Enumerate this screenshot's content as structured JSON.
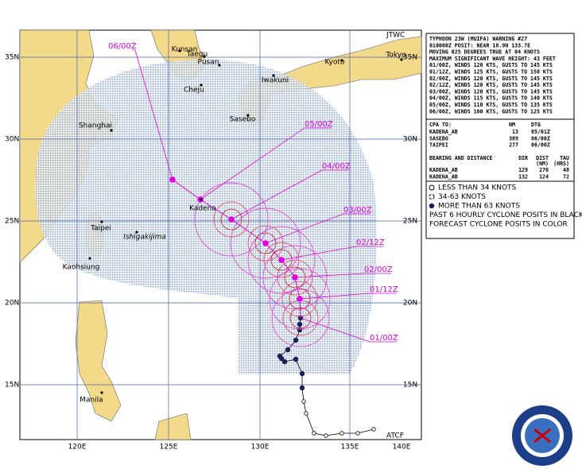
{
  "map": {
    "corner_label": "JTWC",
    "footer_label": "ATCF",
    "lat_labels": [
      "35N",
      "30N",
      "25N",
      "20N",
      "15N"
    ],
    "lon_labels": [
      "120E",
      "125E",
      "130E",
      "135E",
      "140E"
    ],
    "places": [
      "Kunsan",
      "Taegu",
      "Pusan",
      "Cheju",
      "Sasebo",
      "Iwakuni",
      "Kyoto",
      "Tokyo",
      "Shanghai",
      "Kadena",
      "Taipei",
      "Ishigakijima",
      "Kaohsiung",
      "Manila"
    ],
    "forecast_labels": [
      "01/00Z",
      "01/12Z",
      "02/00Z",
      "02/12Z",
      "03/00Z",
      "04/00Z",
      "05/00Z",
      "06/00Z"
    ]
  },
  "warning": {
    "lines": [
      "TYPHOON 23W (MUIFA) WARNING #27",
      "010000Z POSIT: NEAR 18.9N 133.7E",
      "MOVING 025 DEGREES TRUE AT 04 KNOTS",
      "MAXIMUM SIGNIFICANT WAVE HEIGHT: 43 FEET",
      "01/00Z, WINDS 120 KTS, GUSTS TO 145 KTS",
      "01/12Z, WINDS 125 KTS, GUSTS TO 150 KTS",
      "02/00Z, WINDS 120 KTS, GUSTS TO 145 KTS",
      "02/12Z, WINDS 120 KTS, GUSTS TO 145 KTS",
      "03/00Z, WINDS 120 KTS, GUSTS TO 145 KTS",
      "04/00Z, WINDS 115 KTS, GUSTS TO 140 KTS",
      "05/00Z, WINDS 110 KTS, GUSTS TO 135 KTS",
      "06/00Z, WINDS 100 KTS, GUSTS TO 125 KTS"
    ],
    "cpa": {
      "header": [
        "CPA TO:",
        "NM",
        "DTG"
      ],
      "rows": [
        [
          "KADENA_AB",
          "13",
          "05/01Z"
        ],
        [
          "SASEBO",
          "389",
          "06/00Z"
        ],
        [
          "TAIPEI",
          "277",
          "06/00Z"
        ]
      ]
    },
    "bearing": {
      "header": [
        "BEARING AND DISTANCE",
        "DIR",
        "DIST",
        "TAU"
      ],
      "units": [
        "(NM)",
        "(HRS)"
      ],
      "rows": [
        [
          "KADENA_AB",
          "129",
          "270",
          "48"
        ],
        [
          "KADENA_AB",
          "132",
          "124",
          "72"
        ]
      ]
    }
  },
  "legend": [
    "LESS THAN 34 KNOTS",
    "34-63 KNOTS",
    "MORE THAN 63 KNOTS",
    "PAST 6 HOURLY CYCLONE POSITS IN BLACK",
    "FORECAST CYCLONE POSITS IN COLOR"
  ]
}
